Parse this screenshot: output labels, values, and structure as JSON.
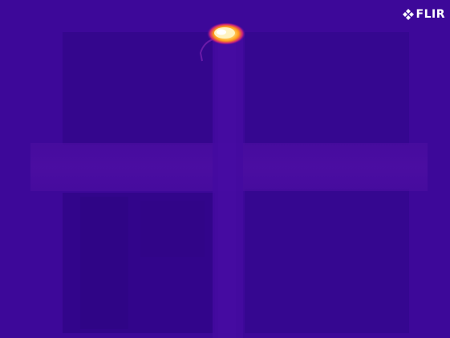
{
  "watermark": {
    "logo_text": "FLIR",
    "logo_icon": "flir-logo-icon",
    "color": "#ffffff"
  },
  "palette": {
    "background": "#3d0899",
    "cool_dark": "#2c0582",
    "cool_mid": "#35078f",
    "warm_band": "#4a0da0",
    "hotspot_outer": "#c8207a",
    "hotspot_mid": "#ff9a1a",
    "hotspot_core": "#fff6c8"
  }
}
